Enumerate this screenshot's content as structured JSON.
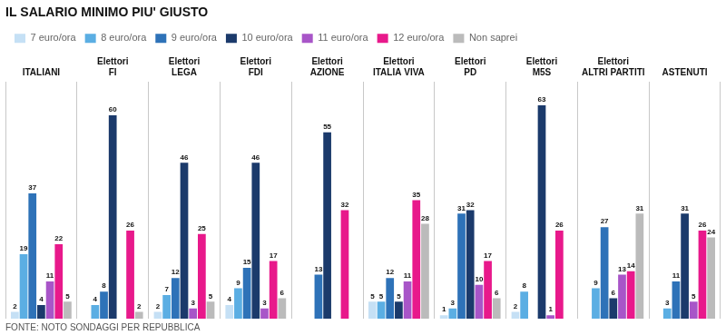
{
  "chart_data": {
    "type": "bar",
    "title": "IL SALARIO MINIMO PIU' GIUSTO",
    "footnote": "FONTE: NOTO SONDAGGI PER REPUBBLICA",
    "categories": [
      "ITALIANI",
      "Elettori FI",
      "Elettori LEGA",
      "Elettori FDI",
      "Elettori AZIONE",
      "Elettori ITALIA VIVA",
      "Elettori PD",
      "Elettori M5S",
      "Elettori ALTRI PARTITI",
      "ASTENUTI"
    ],
    "series": [
      {
        "name": "7 euro/ora",
        "color": "#c5e0f5",
        "values": [
          2,
          0,
          2,
          4,
          0,
          5,
          1,
          2,
          0,
          0
        ]
      },
      {
        "name": "8 euro/ora",
        "color": "#5baee3",
        "values": [
          19,
          4,
          7,
          9,
          0,
          5,
          3,
          8,
          9,
          3
        ]
      },
      {
        "name": "9 euro/ora",
        "color": "#2e72b8",
        "values": [
          37,
          8,
          12,
          15,
          13,
          12,
          31,
          0,
          27,
          11
        ]
      },
      {
        "name": "10 euro/ora",
        "color": "#1b3a6b",
        "values": [
          4,
          60,
          46,
          46,
          55,
          5,
          32,
          63,
          6,
          31
        ]
      },
      {
        "name": "11 euro/ora",
        "color": "#a855c8",
        "values": [
          11,
          0,
          3,
          3,
          0,
          11,
          10,
          1,
          13,
          5
        ]
      },
      {
        "name": "12 euro/ora",
        "color": "#e8198b",
        "values": [
          22,
          26,
          25,
          17,
          32,
          35,
          17,
          26,
          14,
          26
        ]
      },
      {
        "name": "Non saprei",
        "color": "#bbbbbb",
        "values": [
          5,
          2,
          5,
          6,
          0,
          28,
          6,
          0,
          31,
          24
        ]
      }
    ],
    "ylim": [
      0,
      70
    ],
    "tick_labels": "x",
    "grid": true,
    "legend": "top",
    "data_labels": true
  }
}
